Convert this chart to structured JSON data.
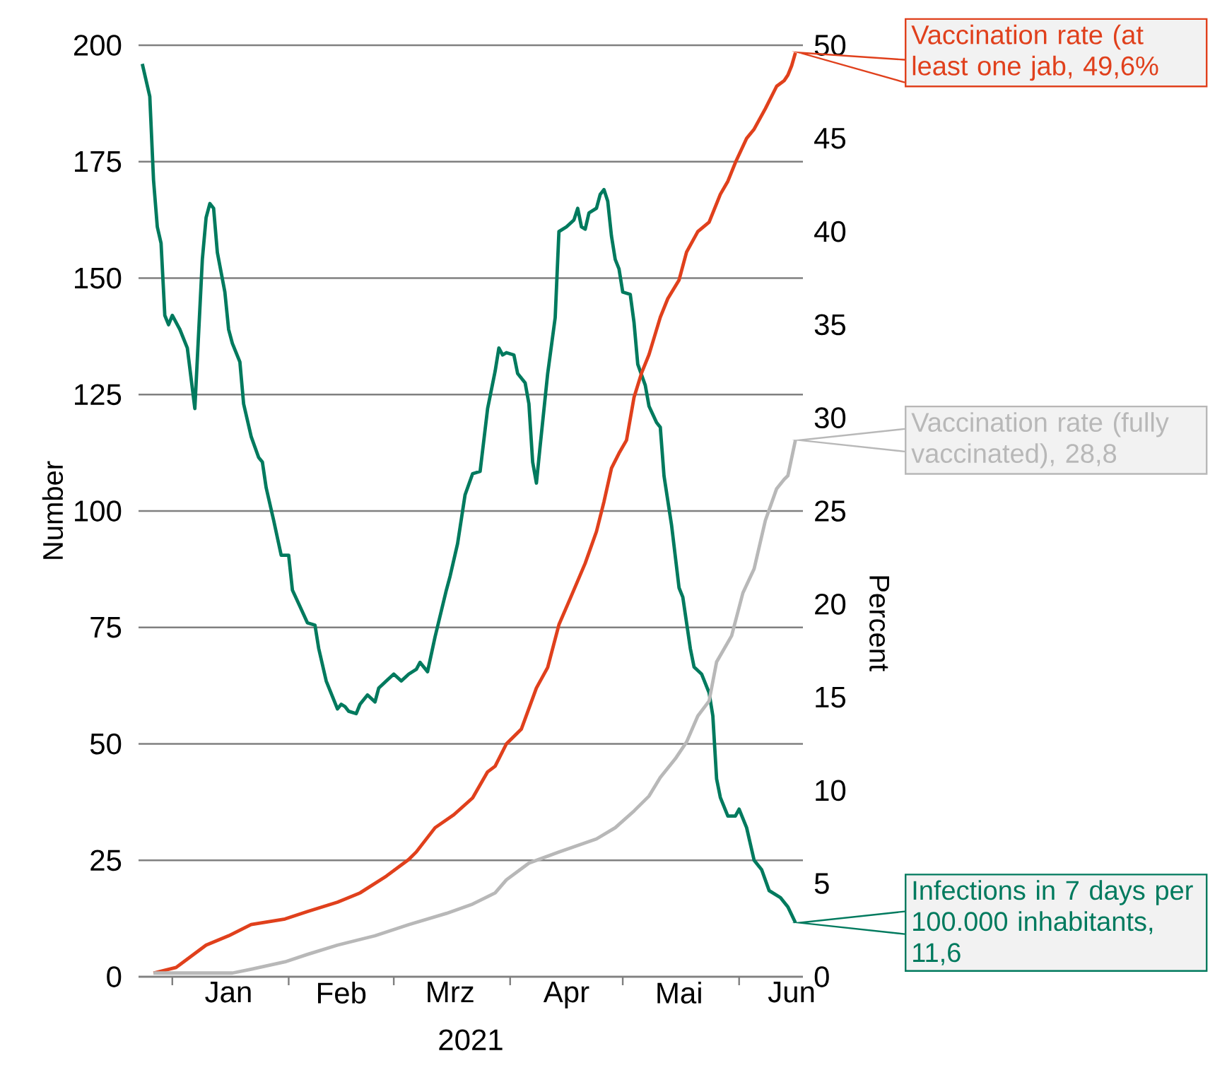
{
  "chart_data": {
    "type": "line",
    "xlabel": "2021",
    "ylabel": "Number",
    "y2label": "Percent",
    "xlim": [
      "2020-12-23",
      "2021-06-18"
    ],
    "xticks": [
      {
        "value": "2021-01-01",
        "label": null
      },
      {
        "value": "2021-02-01",
        "label": null
      },
      {
        "value": "2021-03-01",
        "label": null
      },
      {
        "value": "2021-04-01",
        "label": null
      },
      {
        "value": "2021-05-01",
        "label": null
      },
      {
        "value": "2021-06-01",
        "label": null
      },
      {
        "value": "2021-01-16",
        "label": "Jan"
      },
      {
        "value": "2021-02-15",
        "label": "Feb"
      },
      {
        "value": "2021-03-16",
        "label": "Mrz"
      },
      {
        "value": "2021-04-16",
        "label": "Apr"
      },
      {
        "value": "2021-05-16",
        "label": "Mai"
      },
      {
        "value": "2021-06-15",
        "label": "Jun"
      }
    ],
    "ylim": [
      0,
      200
    ],
    "yticks": [
      0,
      25,
      50,
      75,
      100,
      125,
      150,
      175,
      200
    ],
    "y2lim": [
      0,
      50
    ],
    "y2ticks": [
      0,
      5,
      10,
      15,
      20,
      25,
      30,
      35,
      40,
      45,
      50
    ],
    "grid": "y",
    "series": [
      {
        "color": "#007a5e",
        "x": [
          "2020-12-24",
          "2020-12-26",
          "2020-12-27",
          "2020-12-28",
          "2020-12-29",
          "2020-12-30",
          "2020-12-31",
          "2021-01-01",
          "2021-01-03",
          "2021-01-05",
          "2021-01-07",
          "2021-01-09",
          "2021-01-10",
          "2021-01-11",
          "2021-01-12",
          "2021-01-13",
          "2021-01-15",
          "2021-01-16",
          "2021-01-17",
          "2021-01-19",
          "2021-01-20",
          "2021-01-22",
          "2021-01-24",
          "2021-01-25",
          "2021-01-26",
          "2021-01-28",
          "2021-01-30",
          "2021-02-01",
          "2021-02-02",
          "2021-02-04",
          "2021-02-06",
          "2021-02-08",
          "2021-02-09",
          "2021-02-11",
          "2021-02-14",
          "2021-02-15",
          "2021-02-16",
          "2021-02-17",
          "2021-02-19",
          "2021-02-20",
          "2021-02-22",
          "2021-02-24",
          "2021-02-25",
          "2021-02-27",
          "2021-03-01",
          "2021-03-03",
          "2021-03-05",
          "2021-03-07",
          "2021-03-08",
          "2021-03-10",
          "2021-03-12",
          "2021-03-15",
          "2021-03-16",
          "2021-03-18",
          "2021-03-20",
          "2021-03-22",
          "2021-03-24",
          "2021-03-26",
          "2021-03-28",
          "2021-03-29",
          "2021-03-30",
          "2021-03-31",
          "2021-04-02",
          "2021-04-03",
          "2021-04-05",
          "2021-04-06",
          "2021-04-07",
          "2021-04-08",
          "2021-04-09",
          "2021-04-11",
          "2021-04-13",
          "2021-04-14",
          "2021-04-16",
          "2021-04-18",
          "2021-04-19",
          "2021-04-20",
          "2021-04-21",
          "2021-04-22",
          "2021-04-24",
          "2021-04-25",
          "2021-04-26",
          "2021-04-27",
          "2021-04-28",
          "2021-04-29",
          "2021-04-30",
          "2021-05-01",
          "2021-05-03",
          "2021-05-04",
          "2021-05-05",
          "2021-05-07",
          "2021-05-08",
          "2021-05-10",
          "2021-05-11",
          "2021-05-12",
          "2021-05-14",
          "2021-05-16",
          "2021-05-17",
          "2021-05-19",
          "2021-05-20",
          "2021-05-22",
          "2021-05-24",
          "2021-05-25",
          "2021-05-26",
          "2021-05-27",
          "2021-05-29",
          "2021-05-31",
          "2021-06-01",
          "2021-06-03",
          "2021-06-05",
          "2021-06-07",
          "2021-06-09",
          "2021-06-12",
          "2021-06-14",
          "2021-06-16"
        ],
        "values": [
          196,
          189,
          171,
          161,
          157.5,
          142,
          140,
          142,
          139,
          135,
          122,
          154,
          163,
          166,
          165,
          155.5,
          147,
          139,
          136,
          132,
          123,
          116,
          111.5,
          110.5,
          105,
          98,
          90.5,
          90.5,
          83,
          79.5,
          76,
          75.5,
          70.5,
          63.5,
          57.5,
          58.5,
          58,
          57,
          56.5,
          58.5,
          60.5,
          59,
          62,
          63.5,
          65,
          63.5,
          65,
          66,
          67.5,
          65.5,
          73,
          83,
          86,
          93,
          103.5,
          108,
          108.5,
          122,
          130,
          135,
          133.5,
          134,
          133.5,
          129.5,
          127.5,
          123,
          110.5,
          106,
          114,
          129.5,
          141.5,
          160,
          161,
          162.5,
          165,
          161,
          160.5,
          164,
          165,
          168,
          169,
          166.5,
          159,
          154,
          152,
          147,
          146.5,
          140.5,
          131.5,
          127,
          122.5,
          119,
          118,
          107.5,
          97,
          83.5,
          81.5,
          70.5,
          66.5,
          65,
          61,
          56,
          42.5,
          38.5,
          34.5,
          34.5,
          36,
          32,
          25,
          23,
          18.5,
          17,
          15,
          11.6
        ]
      },
      {
        "color": "#e0401c",
        "axis": "y2",
        "x": [
          "2020-12-27",
          "2021-01-02",
          "2021-01-10",
          "2021-01-16",
          "2021-01-22",
          "2021-01-31",
          "2021-02-06",
          "2021-02-14",
          "2021-02-20",
          "2021-02-27",
          "2021-03-05",
          "2021-03-07",
          "2021-03-12",
          "2021-03-17",
          "2021-03-22",
          "2021-03-26",
          "2021-03-28",
          "2021-03-31",
          "2021-04-04",
          "2021-04-08",
          "2021-04-11",
          "2021-04-14",
          "2021-04-17",
          "2021-04-21",
          "2021-04-24",
          "2021-04-26",
          "2021-04-28",
          "2021-04-30",
          "2021-05-02",
          "2021-05-04",
          "2021-05-06",
          "2021-05-08",
          "2021-05-11",
          "2021-05-13",
          "2021-05-16",
          "2021-05-18",
          "2021-05-21",
          "2021-05-24",
          "2021-05-27",
          "2021-05-29",
          "2021-05-31",
          "2021-06-03",
          "2021-06-05",
          "2021-06-08",
          "2021-06-11",
          "2021-06-13",
          "2021-06-14",
          "2021-06-15",
          "2021-06-16"
        ],
        "values": [
          0.2,
          0.5,
          1.7,
          2.2,
          2.8,
          3.1,
          3.5,
          4.0,
          4.5,
          5.4,
          6.3,
          6.7,
          8.0,
          8.7,
          9.6,
          11.0,
          11.3,
          12.5,
          13.3,
          15.5,
          16.6,
          18.9,
          20.3,
          22.2,
          23.9,
          25.5,
          27.3,
          28.1,
          28.8,
          31.1,
          32.4,
          33.4,
          35.4,
          36.4,
          37.4,
          38.9,
          40.0,
          40.5,
          42.0,
          42.7,
          43.7,
          45.0,
          45.5,
          46.6,
          47.8,
          48.1,
          48.4,
          48.9,
          49.6
        ]
      },
      {
        "color": "#b8b8b8",
        "axis": "y2",
        "x": [
          "2020-12-27",
          "2021-01-17",
          "2021-01-22",
          "2021-01-31",
          "2021-02-06",
          "2021-02-14",
          "2021-02-24",
          "2021-03-05",
          "2021-03-15",
          "2021-03-22",
          "2021-03-28",
          "2021-03-31",
          "2021-04-06",
          "2021-04-14",
          "2021-04-24",
          "2021-04-29",
          "2021-05-04",
          "2021-05-08",
          "2021-05-11",
          "2021-05-15",
          "2021-05-18",
          "2021-05-21",
          "2021-05-24",
          "2021-05-26",
          "2021-05-30",
          "2021-06-02",
          "2021-06-05",
          "2021-06-08",
          "2021-06-11",
          "2021-06-13",
          "2021-06-14",
          "2021-06-16"
        ],
        "values": [
          0.2,
          0.2,
          0.4,
          0.8,
          1.2,
          1.7,
          2.2,
          2.8,
          3.4,
          3.9,
          4.5,
          5.2,
          6.1,
          6.7,
          7.4,
          8.0,
          8.9,
          9.7,
          10.7,
          11.7,
          12.6,
          14.0,
          14.8,
          16.9,
          18.3,
          20.6,
          21.9,
          24.5,
          26.2,
          26.7,
          26.9,
          28.8
        ]
      }
    ],
    "annotations": [
      "Infections in 7 days per 100.000 inhabitants, 11,6",
      "Vaccination rate (at least one jab, 49,6%",
      "Vaccination rate (fully vaccinated), 28,8"
    ]
  }
}
